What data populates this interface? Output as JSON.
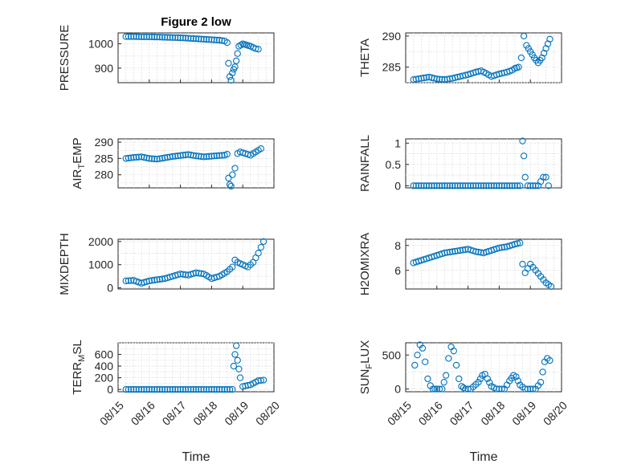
{
  "figure_title": "Figure 2 low",
  "chart_data": [
    {
      "type": "scatter",
      "ylabel": "PRESSURE",
      "title": "Figure 2 low",
      "xlim": [
        "08/15",
        "08/20"
      ],
      "ylim": [
        840,
        1045
      ],
      "yticks": [
        900,
        1000
      ],
      "ytick_labels": [
        "900",
        "1000"
      ],
      "show_xticklabels": false,
      "xlabel": "",
      "grid": true,
      "marker": "circle",
      "color": "#0072BD",
      "points": [
        [
          "08/15 06:00",
          1030
        ],
        [
          "08/15 12:00",
          1030
        ],
        [
          "08/15 18:00",
          1029
        ],
        [
          "08/16 00:00",
          1029
        ],
        [
          "08/16 06:00",
          1028
        ],
        [
          "08/16 12:00",
          1027
        ],
        [
          "08/16 18:00",
          1026
        ],
        [
          "08/17 00:00",
          1025
        ],
        [
          "08/17 06:00",
          1023
        ],
        [
          "08/17 12:00",
          1021
        ],
        [
          "08/17 18:00",
          1019
        ],
        [
          "08/18 00:00",
          1017
        ],
        [
          "08/18 06:00",
          1015
        ],
        [
          "08/18 10:00",
          1012
        ],
        [
          "08/18 12:00",
          1005
        ],
        [
          "08/18 13:00",
          920
        ],
        [
          "08/18 14:00",
          865
        ],
        [
          "08/18 15:00",
          850
        ],
        [
          "08/18 16:00",
          880
        ],
        [
          "08/18 17:00",
          895
        ],
        [
          "08/18 18:00",
          905
        ],
        [
          "08/18 19:00",
          930
        ],
        [
          "08/18 20:00",
          960
        ],
        [
          "08/18 21:00",
          990
        ],
        [
          "08/19 00:00",
          1000
        ],
        [
          "08/19 03:00",
          995
        ],
        [
          "08/19 06:00",
          990
        ],
        [
          "08/19 08:00",
          985
        ],
        [
          "08/19 10:00",
          980
        ],
        [
          "08/19 12:00",
          978
        ]
      ]
    },
    {
      "type": "scatter",
      "ylabel": "THETA",
      "xlim": [
        "08/15",
        "08/20"
      ],
      "ylim": [
        282.5,
        290.5
      ],
      "yticks": [
        285,
        290
      ],
      "ytick_labels": [
        "285",
        "290"
      ],
      "show_xticklabels": false,
      "xlabel": "",
      "grid": true,
      "marker": "circle",
      "color": "#0072BD",
      "points": [
        [
          "08/15 06:00",
          283.0
        ],
        [
          "08/15 12:00",
          283.2
        ],
        [
          "08/15 18:00",
          283.4
        ],
        [
          "08/16 00:00",
          283.1
        ],
        [
          "08/16 06:00",
          283.0
        ],
        [
          "08/16 12:00",
          283.2
        ],
        [
          "08/16 18:00",
          283.5
        ],
        [
          "08/17 00:00",
          283.8
        ],
        [
          "08/17 06:00",
          284.2
        ],
        [
          "08/17 10:00",
          284.4
        ],
        [
          "08/17 14:00",
          284.0
        ],
        [
          "08/17 18:00",
          283.5
        ],
        [
          "08/18 00:00",
          283.9
        ],
        [
          "08/18 06:00",
          284.2
        ],
        [
          "08/18 10:00",
          284.5
        ],
        [
          "08/18 12:00",
          284.8
        ],
        [
          "08/18 15:00",
          285.0
        ],
        [
          "08/18 17:00",
          286.5
        ],
        [
          "08/18 19:00",
          290.0
        ],
        [
          "08/18 21:00",
          288.5
        ],
        [
          "08/19 00:00",
          287.5
        ],
        [
          "08/19 03:00",
          286.5
        ],
        [
          "08/19 06:00",
          285.7
        ],
        [
          "08/19 09:00",
          286.5
        ],
        [
          "08/19 12:00",
          288.0
        ],
        [
          "08/19 15:00",
          289.5
        ]
      ]
    },
    {
      "type": "scatter",
      "ylabel": "AIR_TEMP",
      "xlim": [
        "08/15",
        "08/20"
      ],
      "ylim": [
        276,
        291
      ],
      "yticks": [
        280,
        285,
        290
      ],
      "ytick_labels": [
        "280",
        "285",
        "290"
      ],
      "show_xticklabels": false,
      "xlabel": "",
      "grid": true,
      "marker": "circle",
      "color": "#0072BD",
      "points": [
        [
          "08/15 06:00",
          285.0
        ],
        [
          "08/15 12:00",
          285.3
        ],
        [
          "08/15 18:00",
          285.5
        ],
        [
          "08/16 00:00",
          285.0
        ],
        [
          "08/16 06:00",
          284.8
        ],
        [
          "08/16 12:00",
          285.2
        ],
        [
          "08/16 18:00",
          285.6
        ],
        [
          "08/17 00:00",
          285.9
        ],
        [
          "08/17 06:00",
          286.2
        ],
        [
          "08/17 12:00",
          285.8
        ],
        [
          "08/17 18:00",
          285.5
        ],
        [
          "08/18 00:00",
          285.7
        ],
        [
          "08/18 06:00",
          285.9
        ],
        [
          "08/18 10:00",
          286.0
        ],
        [
          "08/18 12:00",
          286.3
        ],
        [
          "08/18 13:00",
          279.0
        ],
        [
          "08/18 14:00",
          277.0
        ],
        [
          "08/18 15:00",
          276.5
        ],
        [
          "08/18 16:00",
          280.0
        ],
        [
          "08/18 18:00",
          282.0
        ],
        [
          "08/18 20:00",
          286.5
        ],
        [
          "08/18 22:00",
          287.0
        ],
        [
          "08/19 02:00",
          286.5
        ],
        [
          "08/19 06:00",
          286.0
        ],
        [
          "08/19 10:00",
          287.0
        ],
        [
          "08/19 14:00",
          288.0
        ]
      ]
    },
    {
      "type": "scatter",
      "ylabel": "RAINFALL",
      "xlim": [
        "08/15",
        "08/20"
      ],
      "ylim": [
        -0.05,
        1.1
      ],
      "yticks": [
        0,
        0.5,
        1
      ],
      "ytick_labels": [
        "0",
        "0.5",
        "1"
      ],
      "show_xticklabels": false,
      "xlabel": "",
      "grid": true,
      "marker": "circle",
      "color": "#0072BD",
      "points": [
        [
          "08/15 06:00",
          0
        ],
        [
          "08/15 12:00",
          0
        ],
        [
          "08/15 18:00",
          0
        ],
        [
          "08/16 00:00",
          0
        ],
        [
          "08/16 06:00",
          0
        ],
        [
          "08/16 12:00",
          0
        ],
        [
          "08/16 18:00",
          0
        ],
        [
          "08/17 00:00",
          0
        ],
        [
          "08/17 06:00",
          0
        ],
        [
          "08/17 12:00",
          0
        ],
        [
          "08/17 18:00",
          0
        ],
        [
          "08/18 00:00",
          0
        ],
        [
          "08/18 06:00",
          0
        ],
        [
          "08/18 12:00",
          0
        ],
        [
          "08/18 16:00",
          0
        ],
        [
          "08/18 18:00",
          1.05
        ],
        [
          "08/18 19:00",
          0.7
        ],
        [
          "08/18 20:00",
          0.2
        ],
        [
          "08/18 22:00",
          0
        ],
        [
          "08/19 06:00",
          0
        ],
        [
          "08/19 10:00",
          0.2
        ],
        [
          "08/19 12:00",
          0.2
        ],
        [
          "08/19 14:00",
          0
        ]
      ]
    },
    {
      "type": "scatter",
      "ylabel": "MIXDEPTH",
      "xlim": [
        "08/15",
        "08/20"
      ],
      "ylim": [
        -50,
        2100
      ],
      "yticks": [
        0,
        1000,
        2000
      ],
      "ytick_labels": [
        "0",
        "1000",
        "2000"
      ],
      "show_xticklabels": false,
      "xlabel": "",
      "grid": true,
      "marker": "circle",
      "color": "#0072BD",
      "points": [
        [
          "08/15 06:00",
          300
        ],
        [
          "08/15 12:00",
          320
        ],
        [
          "08/15 18:00",
          200
        ],
        [
          "08/16 00:00",
          300
        ],
        [
          "08/16 06:00",
          350
        ],
        [
          "08/16 12:00",
          400
        ],
        [
          "08/16 18:00",
          500
        ],
        [
          "08/17 00:00",
          600
        ],
        [
          "08/17 06:00",
          550
        ],
        [
          "08/17 12:00",
          650
        ],
        [
          "08/17 18:00",
          600
        ],
        [
          "08/18 00:00",
          400
        ],
        [
          "08/18 06:00",
          500
        ],
        [
          "08/18 12:00",
          700
        ],
        [
          "08/18 16:00",
          900
        ],
        [
          "08/18 18:00",
          1200
        ],
        [
          "08/18 20:00",
          1100
        ],
        [
          "08/19 00:00",
          1000
        ],
        [
          "08/19 04:00",
          900
        ],
        [
          "08/19 08:00",
          1100
        ],
        [
          "08/19 12:00",
          1500
        ],
        [
          "08/19 16:00",
          2000
        ]
      ]
    },
    {
      "type": "scatter",
      "ylabel": "H2OMIXRA",
      "xlim": [
        "08/15",
        "08/20"
      ],
      "ylim": [
        4.5,
        8.5
      ],
      "yticks": [
        6,
        8
      ],
      "ytick_labels": [
        "6",
        "8"
      ],
      "show_xticklabels": false,
      "xlabel": "",
      "grid": true,
      "marker": "circle",
      "color": "#0072BD",
      "points": [
        [
          "08/15 06:00",
          6.6
        ],
        [
          "08/15 12:00",
          6.8
        ],
        [
          "08/15 18:00",
          7.0
        ],
        [
          "08/16 00:00",
          7.2
        ],
        [
          "08/16 06:00",
          7.4
        ],
        [
          "08/16 12:00",
          7.5
        ],
        [
          "08/16 18:00",
          7.6
        ],
        [
          "08/17 00:00",
          7.7
        ],
        [
          "08/17 06:00",
          7.5
        ],
        [
          "08/17 12:00",
          7.4
        ],
        [
          "08/17 18:00",
          7.6
        ],
        [
          "08/18 00:00",
          7.8
        ],
        [
          "08/18 06:00",
          7.9
        ],
        [
          "08/18 12:00",
          8.1
        ],
        [
          "08/18 16:00",
          8.2
        ],
        [
          "08/18 18:00",
          6.5
        ],
        [
          "08/18 20:00",
          5.8
        ],
        [
          "08/19 00:00",
          6.5
        ],
        [
          "08/19 04:00",
          6.0
        ],
        [
          "08/19 08:00",
          5.5
        ],
        [
          "08/19 12:00",
          5.0
        ],
        [
          "08/19 16:00",
          4.7
        ]
      ]
    },
    {
      "type": "scatter",
      "ylabel": "TERR_MSL",
      "xlim": [
        "08/15",
        "08/20"
      ],
      "ylim": [
        -40,
        800
      ],
      "yticks": [
        0,
        200,
        400,
        600
      ],
      "ytick_labels": [
        "0",
        "200",
        "400",
        "600"
      ],
      "show_xticklabels": true,
      "xlabel": "Time",
      "grid": true,
      "marker": "circle",
      "color": "#0072BD",
      "xticks": [
        "08/15",
        "08/16",
        "08/17",
        "08/18",
        "08/19",
        "08/20"
      ],
      "points": [
        [
          "08/15 06:00",
          0
        ],
        [
          "08/15 12:00",
          0
        ],
        [
          "08/15 18:00",
          0
        ],
        [
          "08/16 00:00",
          0
        ],
        [
          "08/16 06:00",
          0
        ],
        [
          "08/16 12:00",
          0
        ],
        [
          "08/16 18:00",
          0
        ],
        [
          "08/17 00:00",
          0
        ],
        [
          "08/17 06:00",
          0
        ],
        [
          "08/17 12:00",
          0
        ],
        [
          "08/17 18:00",
          0
        ],
        [
          "08/18 00:00",
          0
        ],
        [
          "08/18 06:00",
          0
        ],
        [
          "08/18 12:00",
          0
        ],
        [
          "08/18 16:00",
          0
        ],
        [
          "08/18 17:00",
          400
        ],
        [
          "08/18 18:00",
          600
        ],
        [
          "08/18 19:00",
          750
        ],
        [
          "08/18 20:00",
          500
        ],
        [
          "08/18 21:00",
          350
        ],
        [
          "08/18 22:00",
          200
        ],
        [
          "08/19 00:00",
          50
        ],
        [
          "08/19 06:00",
          80
        ],
        [
          "08/19 12:00",
          150
        ],
        [
          "08/19 16:00",
          160
        ]
      ]
    },
    {
      "type": "scatter",
      "ylabel": "SUN_FLUX",
      "xlim": [
        "08/15",
        "08/20"
      ],
      "ylim": [
        -40,
        680
      ],
      "yticks": [
        0,
        500
      ],
      "ytick_labels": [
        "0",
        "500"
      ],
      "show_xticklabels": true,
      "xlabel": "Time",
      "grid": true,
      "marker": "circle",
      "color": "#0072BD",
      "xticks": [
        "08/15",
        "08/16",
        "08/17",
        "08/18",
        "08/19",
        "08/20"
      ],
      "points": [
        [
          "08/15 07:00",
          350
        ],
        [
          "08/15 09:00",
          500
        ],
        [
          "08/15 11:00",
          650
        ],
        [
          "08/15 13:00",
          600
        ],
        [
          "08/15 15:00",
          400
        ],
        [
          "08/15 17:00",
          150
        ],
        [
          "08/15 19:00",
          50
        ],
        [
          "08/15 21:00",
          0
        ],
        [
          "08/16 00:00",
          0
        ],
        [
          "08/16 04:00",
          0
        ],
        [
          "08/16 07:00",
          200
        ],
        [
          "08/16 09:00",
          450
        ],
        [
          "08/16 11:00",
          620
        ],
        [
          "08/16 13:00",
          560
        ],
        [
          "08/16 15:00",
          350
        ],
        [
          "08/16 17:00",
          150
        ],
        [
          "08/16 19:00",
          40
        ],
        [
          "08/16 22:00",
          0
        ],
        [
          "08/17 02:00",
          0
        ],
        [
          "08/17 08:00",
          100
        ],
        [
          "08/17 11:00",
          200
        ],
        [
          "08/17 13:00",
          220
        ],
        [
          "08/17 15:00",
          150
        ],
        [
          "08/17 18:00",
          40
        ],
        [
          "08/17 22:00",
          0
        ],
        [
          "08/18 04:00",
          0
        ],
        [
          "08/18 08:00",
          120
        ],
        [
          "08/18 11:00",
          200
        ],
        [
          "08/18 13:00",
          180
        ],
        [
          "08/18 16:00",
          60
        ],
        [
          "08/18 20:00",
          0
        ],
        [
          "08/19 04:00",
          0
        ],
        [
          "08/19 08:00",
          100
        ],
        [
          "08/19 11:00",
          400
        ],
        [
          "08/19 13:00",
          450
        ],
        [
          "08/19 15:00",
          420
        ]
      ]
    }
  ]
}
